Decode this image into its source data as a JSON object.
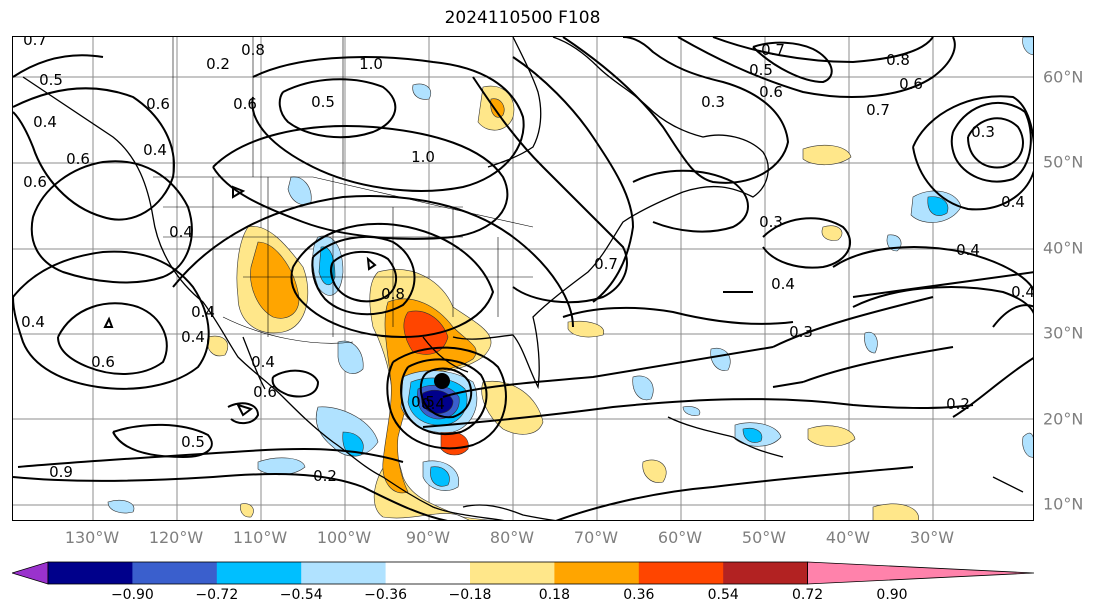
{
  "title": "2024110500 F108",
  "lon_labels": [
    "130°W",
    "120°W",
    "110°W",
    "100°W",
    "90°W",
    "80°W",
    "70°W",
    "60°W",
    "50°W",
    "40°W",
    "30°W"
  ],
  "lat_labels": [
    "60°N",
    "50°N",
    "40°N",
    "30°N",
    "20°N",
    "10°N"
  ],
  "colorbar": {
    "colors": [
      "#9a32cd",
      "#00008b",
      "#3a5fcd",
      "#00bfff",
      "#b0e2ff",
      "#ffffff",
      "#ffe78a",
      "#ffa500",
      "#ff4500",
      "#b22222",
      "#ff82ab"
    ],
    "ticks": [
      "−0.90",
      "−0.72",
      "−0.54",
      "−0.36",
      "−0.18",
      "0.18",
      "0.36",
      "0.54",
      "0.72",
      "0.90"
    ]
  },
  "contour_labels": [
    "0.7",
    "0.5",
    "0.8",
    "1.0",
    "0.6",
    "0.6",
    "0.5",
    "0.4",
    "0.6",
    "0.6",
    "0.4",
    "1.0",
    "0.4",
    "0.4",
    "0.8",
    "0.7",
    "0.4",
    "0.3",
    "0.5",
    "0.7",
    "0.6",
    "0.8",
    "0.6",
    "0.3",
    "0.7",
    "0.4",
    "0.3",
    "0.2",
    "0.4",
    "0.3",
    "0.4",
    "0.4",
    "0.6",
    "0.5",
    "0.6",
    "0.4",
    "0.5",
    "0.9",
    "0.2",
    "0.2",
    "0.4",
    "0.4"
  ],
  "storm_marker": "black-dot"
}
